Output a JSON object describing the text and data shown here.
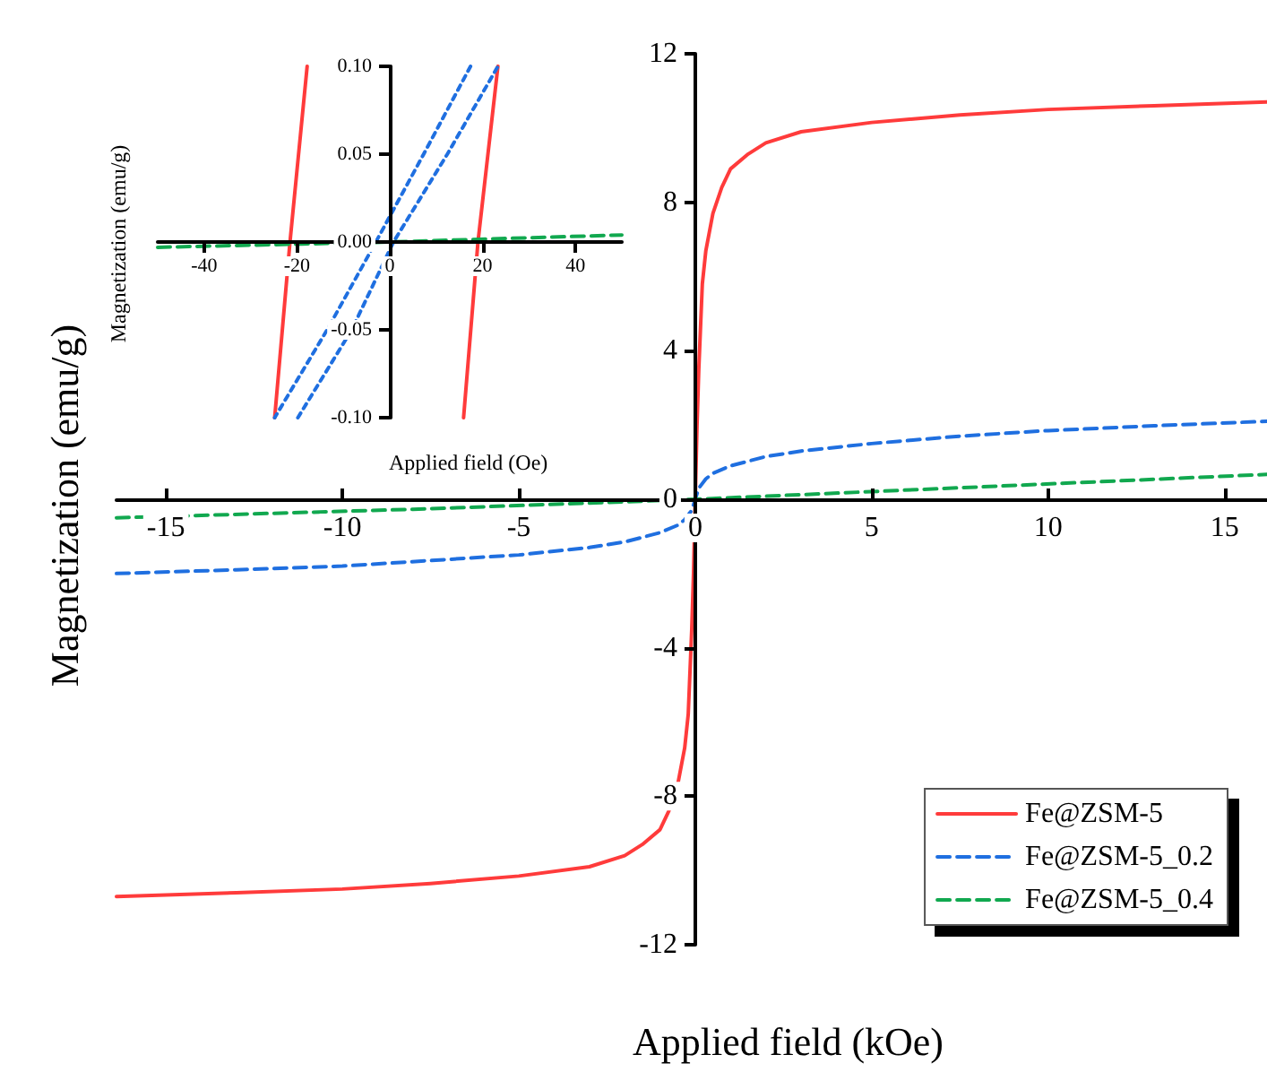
{
  "chart_data": [
    {
      "type": "line",
      "xlabel": "Applied field (kOe)",
      "ylabel": "Magnetization (emu/g)",
      "xlim": [
        -16.4,
        16.2
      ],
      "xticks": [
        -15,
        -10,
        -5,
        0,
        5,
        10,
        15
      ],
      "ylim": [
        -12,
        12
      ],
      "yticks": [
        -12,
        -8,
        -4,
        0,
        4,
        8,
        12
      ],
      "grid": false,
      "legend": "bottom right",
      "marker": "none",
      "series": [
        {
          "name": "Fe@ZSM-5",
          "color": "#ff3b3b",
          "line_style": "solid",
          "x": [
            -16.4,
            -13,
            -10,
            -7.5,
            -5,
            -3,
            -2,
            -1.5,
            -1,
            -0.75,
            -0.5,
            -0.3,
            -0.2,
            -0.1,
            -0.05,
            0,
            0.05,
            0.1,
            0.2,
            0.3,
            0.5,
            0.75,
            1,
            1.5,
            2,
            3,
            5,
            7.5,
            10,
            13,
            16.2
          ],
          "values": [
            -10.7,
            -10.6,
            -10.5,
            -10.35,
            -10.15,
            -9.9,
            -9.6,
            -9.3,
            -8.9,
            -8.4,
            -7.7,
            -6.7,
            -5.8,
            -3.5,
            -2,
            0,
            2,
            3.5,
            5.8,
            6.7,
            7.7,
            8.4,
            8.9,
            9.3,
            9.6,
            9.9,
            10.15,
            10.35,
            10.5,
            10.6,
            10.7
          ]
        },
        {
          "name": "Fe@ZSM-5_0.2",
          "color": "#1f6fe0",
          "line_style": "dashed",
          "x": [
            -16.4,
            -13,
            -10,
            -7.5,
            -5,
            -3,
            -2,
            -1,
            -0.5,
            -0.3,
            -0.1,
            0,
            0.1,
            0.3,
            0.5,
            1,
            2,
            3,
            5,
            7.5,
            10,
            13,
            16.2
          ],
          "values": [
            -2.0,
            -1.9,
            -1.8,
            -1.65,
            -1.5,
            -1.3,
            -1.15,
            -0.9,
            -0.7,
            -0.55,
            -0.3,
            0,
            0.3,
            0.55,
            0.7,
            0.9,
            1.15,
            1.3,
            1.5,
            1.7,
            1.85,
            1.98,
            2.1
          ]
        },
        {
          "name": "Fe@ZSM-5_0.4",
          "color": "#11a84f",
          "line_style": "dashed",
          "x": [
            -16.4,
            -8,
            0,
            8,
            16.2
          ],
          "values": [
            -0.5,
            -0.27,
            0,
            0.33,
            0.67
          ]
        }
      ]
    },
    {
      "type": "line",
      "xlabel": "Applied field (Oe)",
      "ylabel": "Magnetization (emu/g)",
      "xlim": [
        -50,
        50
      ],
      "xticks": [
        -40,
        -20,
        0,
        20,
        40
      ],
      "ylim": [
        -0.1,
        0.1
      ],
      "yticks": [
        {
          "value": -0.1,
          "label": "-0.10"
        },
        {
          "value": -0.05,
          "label": "-0.05"
        },
        {
          "value": 0,
          "label": "0.00"
        },
        {
          "value": 0.05,
          "label": "0.05"
        },
        {
          "value": 0.1,
          "label": "0.10"
        }
      ],
      "grid": false,
      "marker": "none",
      "series": [
        {
          "color": "#ff3b3b",
          "line_style": "solid",
          "x": [
            -17.8,
            -21.5,
            -24.8
          ],
          "values": [
            0.1,
            0,
            -0.1
          ]
        },
        {
          "color": "#ff3b3b",
          "line_style": "solid",
          "x": [
            15.9,
            19,
            23.3
          ],
          "values": [
            -0.1,
            0,
            0.1
          ]
        },
        {
          "color": "#1f6fe0",
          "line_style": "dotted",
          "x": [
            17.4,
            7.3,
            -3,
            -13.5,
            -24.8
          ],
          "values": [
            0.1,
            0.05,
            0,
            -0.05,
            -0.1
          ]
        },
        {
          "color": "#1f6fe0",
          "line_style": "dotted",
          "x": [
            -19.8,
            -8.2,
            0.8,
            12.4,
            23.3
          ],
          "values": [
            -0.1,
            -0.05,
            0,
            0.05,
            0.1
          ]
        },
        {
          "color": "#11a84f",
          "line_style": "dashed",
          "x": [
            -50,
            0,
            50
          ],
          "values": [
            -0.003,
            0,
            0.004
          ]
        }
      ]
    }
  ]
}
